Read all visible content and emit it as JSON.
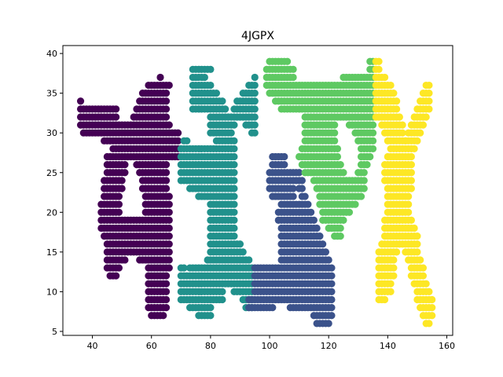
{
  "chart_data": {
    "type": "scatter",
    "title": "4JGPX",
    "xlabel": "",
    "ylabel": "",
    "xlim": [
      30,
      162
    ],
    "ylim": [
      4.5,
      41
    ],
    "xticks": [
      40,
      60,
      80,
      100,
      120,
      140,
      160
    ],
    "yticks": [
      5,
      10,
      15,
      20,
      25,
      30,
      35,
      40
    ],
    "grid": false,
    "legend": "none",
    "series": [
      {
        "color": "#440154",
        "rows": [
          [
            37,
            63,
            63
          ],
          [
            36,
            59,
            66
          ],
          [
            35,
            57,
            65
          ],
          [
            34,
            36,
            36
          ],
          [
            34,
            56,
            65
          ],
          [
            33,
            36,
            48
          ],
          [
            33,
            55,
            65
          ],
          [
            32,
            36,
            48
          ],
          [
            32,
            54,
            65
          ],
          [
            31,
            36,
            66
          ],
          [
            30,
            37,
            69
          ],
          [
            29,
            44,
            69
          ],
          [
            28,
            47,
            69
          ],
          [
            27,
            45,
            69
          ],
          [
            26,
            45,
            51
          ],
          [
            26,
            55,
            65
          ],
          [
            25,
            45,
            51
          ],
          [
            25,
            56,
            65
          ],
          [
            24,
            44,
            50
          ],
          [
            24,
            57,
            65
          ],
          [
            23,
            44,
            50
          ],
          [
            23,
            57,
            65
          ],
          [
            22,
            44,
            49
          ],
          [
            22,
            58,
            66
          ],
          [
            21,
            43,
            49
          ],
          [
            21,
            58,
            66
          ],
          [
            20,
            43,
            49
          ],
          [
            20,
            58,
            66
          ],
          [
            19,
            43,
            66
          ],
          [
            18,
            43,
            66
          ],
          [
            17,
            44,
            66
          ],
          [
            16,
            45,
            66
          ],
          [
            15,
            45,
            66
          ],
          [
            14,
            45,
            51
          ],
          [
            14,
            56,
            66
          ],
          [
            13,
            45,
            49
          ],
          [
            13,
            59,
            66
          ],
          [
            12,
            46,
            48
          ],
          [
            12,
            59,
            65
          ],
          [
            11,
            59,
            65
          ],
          [
            10,
            59,
            65
          ],
          [
            9,
            59,
            65
          ],
          [
            8,
            59,
            65
          ],
          [
            7,
            60,
            64
          ]
        ]
      },
      {
        "color": "#21918c",
        "rows": [
          [
            38,
            74,
            80
          ],
          [
            37,
            74,
            78
          ],
          [
            37,
            95,
            95
          ],
          [
            36,
            74,
            80
          ],
          [
            36,
            93,
            95
          ],
          [
            35,
            74,
            82
          ],
          [
            35,
            91,
            95
          ],
          [
            34,
            74,
            84
          ],
          [
            34,
            89,
            95
          ],
          [
            33,
            74,
            85
          ],
          [
            33,
            88,
            95
          ],
          [
            32,
            80,
            95
          ],
          [
            31,
            80,
            88
          ],
          [
            31,
            92,
            95
          ],
          [
            30,
            80,
            87
          ],
          [
            30,
            94,
            95
          ],
          [
            29,
            71,
            72
          ],
          [
            29,
            82,
            88
          ],
          [
            28,
            70,
            88
          ],
          [
            27,
            70,
            88
          ],
          [
            26,
            70,
            88
          ],
          [
            25,
            70,
            88
          ],
          [
            24,
            70,
            88
          ],
          [
            23,
            73,
            88
          ],
          [
            22,
            76,
            88
          ],
          [
            21,
            80,
            88
          ],
          [
            20,
            80,
            88
          ],
          [
            19,
            80,
            88
          ],
          [
            18,
            80,
            88
          ],
          [
            17,
            80,
            88
          ],
          [
            16,
            80,
            90
          ],
          [
            15,
            80,
            91
          ],
          [
            14,
            79,
            93
          ],
          [
            13,
            70,
            71
          ],
          [
            13,
            73,
            94
          ],
          [
            12,
            70,
            94
          ],
          [
            11,
            70,
            94
          ],
          [
            10,
            70,
            84
          ],
          [
            10,
            88,
            94
          ],
          [
            9,
            70,
            84
          ],
          [
            9,
            91,
            94
          ],
          [
            8,
            73,
            80
          ],
          [
            8,
            92,
            94
          ],
          [
            7,
            76,
            80
          ]
        ]
      },
      {
        "color": "#3b528b",
        "rows": [
          [
            27,
            101,
            105
          ],
          [
            26,
            101,
            105
          ],
          [
            25,
            100,
            110
          ],
          [
            24,
            100,
            111
          ],
          [
            23,
            100,
            108
          ],
          [
            23,
            110,
            111
          ],
          [
            22,
            101,
            108
          ],
          [
            22,
            111,
            112
          ],
          [
            21,
            104,
            113
          ],
          [
            20,
            103,
            114
          ],
          [
            19,
            103,
            115
          ],
          [
            18,
            104,
            116
          ],
          [
            17,
            104,
            117
          ],
          [
            16,
            104,
            118
          ],
          [
            15,
            104,
            119
          ],
          [
            14,
            104,
            120
          ],
          [
            13,
            95,
            121
          ],
          [
            12,
            95,
            121
          ],
          [
            11,
            95,
            121
          ],
          [
            10,
            95,
            121
          ],
          [
            9,
            93,
            121
          ],
          [
            8,
            93,
            101
          ],
          [
            8,
            107,
            121
          ],
          [
            7,
            115,
            121
          ],
          [
            6,
            116,
            120
          ]
        ]
      },
      {
        "color": "#5ec962",
        "rows": [
          [
            39,
            100,
            106
          ],
          [
            39,
            134,
            135
          ],
          [
            38,
            99,
            108
          ],
          [
            38,
            134,
            135
          ],
          [
            37,
            99,
            108
          ],
          [
            37,
            125,
            135
          ],
          [
            36,
            99,
            135
          ],
          [
            35,
            100,
            135
          ],
          [
            34,
            102,
            135
          ],
          [
            33,
            104,
            135
          ],
          [
            32,
            112,
            135
          ],
          [
            31,
            112,
            122
          ],
          [
            31,
            127,
            135
          ],
          [
            30,
            112,
            122
          ],
          [
            30,
            129,
            135
          ],
          [
            29,
            112,
            122
          ],
          [
            29,
            130,
            135
          ],
          [
            28,
            111,
            123
          ],
          [
            28,
            131,
            135
          ],
          [
            27,
            110,
            123
          ],
          [
            27,
            131,
            134
          ],
          [
            26,
            111,
            124
          ],
          [
            26,
            131,
            133
          ],
          [
            25,
            112,
            125
          ],
          [
            25,
            130,
            132
          ],
          [
            24,
            115,
            132
          ],
          [
            23,
            116,
            132
          ],
          [
            22,
            117,
            131
          ],
          [
            21,
            117,
            129
          ],
          [
            20,
            118,
            127
          ],
          [
            19,
            118,
            125
          ],
          [
            18,
            120,
            124
          ],
          [
            17,
            122,
            124
          ]
        ]
      },
      {
        "color": "#fde725",
        "rows": [
          [
            39,
            136,
            137
          ],
          [
            38,
            136,
            137
          ],
          [
            37,
            136,
            139
          ],
          [
            36,
            136,
            141
          ],
          [
            36,
            153,
            154
          ],
          [
            35,
            136,
            142
          ],
          [
            35,
            152,
            154
          ],
          [
            34,
            136,
            143
          ],
          [
            34,
            151,
            154
          ],
          [
            33,
            136,
            143
          ],
          [
            33,
            150,
            154
          ],
          [
            32,
            136,
            144
          ],
          [
            32,
            149,
            153
          ],
          [
            31,
            138,
            145
          ],
          [
            31,
            148,
            152
          ],
          [
            30,
            139,
            145
          ],
          [
            30,
            147,
            151
          ],
          [
            29,
            140,
            146
          ],
          [
            29,
            146,
            150
          ],
          [
            28,
            141,
            149
          ],
          [
            27,
            140,
            148
          ],
          [
            26,
            139,
            148
          ],
          [
            25,
            139,
            148
          ],
          [
            24,
            139,
            148
          ],
          [
            23,
            140,
            148
          ],
          [
            22,
            140,
            147
          ],
          [
            21,
            140,
            147
          ],
          [
            20,
            140,
            147
          ],
          [
            19,
            139,
            148
          ],
          [
            18,
            139,
            149
          ],
          [
            17,
            139,
            150
          ],
          [
            16,
            138,
            150
          ],
          [
            15,
            137,
            143
          ],
          [
            15,
            146,
            150
          ],
          [
            14,
            137,
            142
          ],
          [
            14,
            147,
            151
          ],
          [
            13,
            137,
            142
          ],
          [
            13,
            148,
            152
          ],
          [
            12,
            137,
            142
          ],
          [
            12,
            148,
            152
          ],
          [
            11,
            137,
            141
          ],
          [
            11,
            149,
            153
          ],
          [
            10,
            137,
            141
          ],
          [
            10,
            150,
            154
          ],
          [
            9,
            137,
            139
          ],
          [
            9,
            150,
            155
          ],
          [
            8,
            151,
            155
          ],
          [
            7,
            152,
            155
          ],
          [
            6,
            153,
            154
          ]
        ]
      }
    ]
  }
}
